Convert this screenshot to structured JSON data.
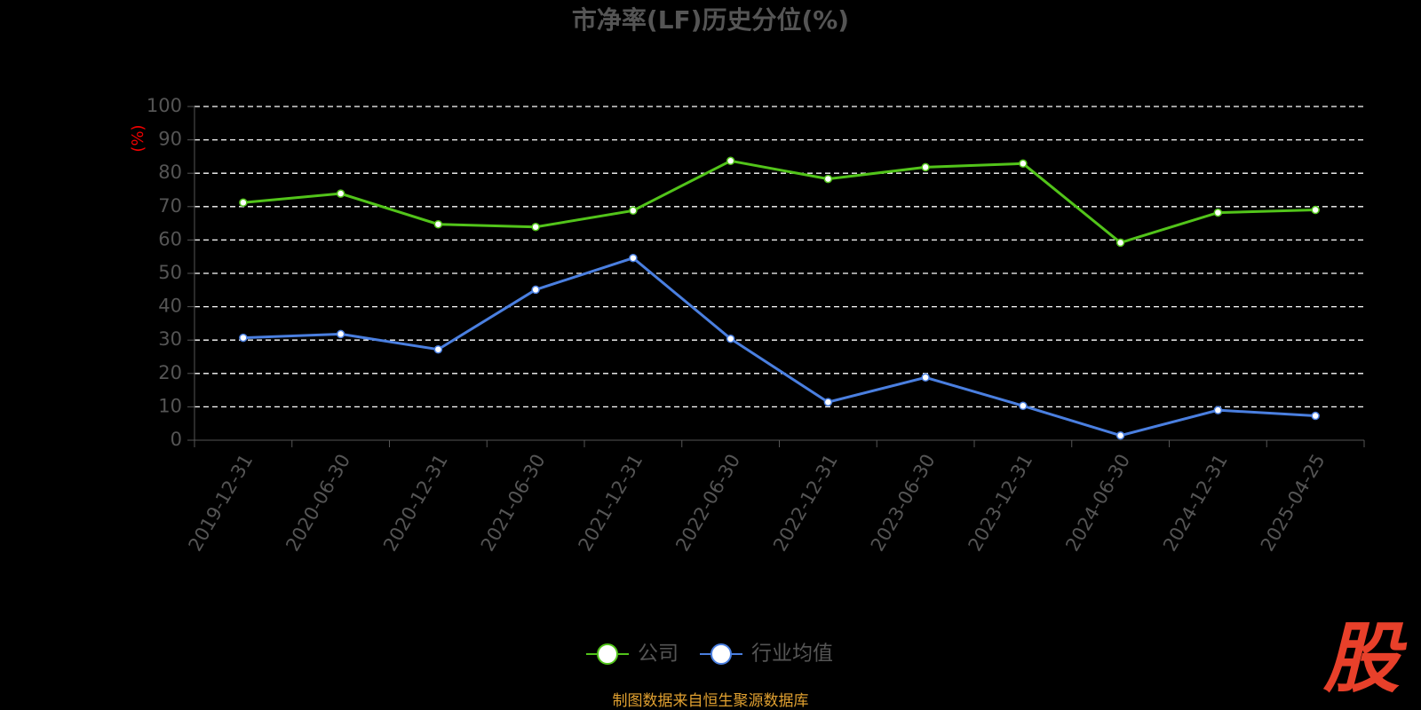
{
  "chart_data": {
    "type": "line",
    "title": "市净率(LF)历史分位(%)",
    "y_label": "(%)",
    "categories": [
      "2019-12-31",
      "2020-06-30",
      "2020-12-31",
      "2021-06-30",
      "2021-12-31",
      "2022-06-30",
      "2022-12-31",
      "2023-06-30",
      "2023-12-31",
      "2024-06-30",
      "2024-12-31",
      "2025-04-25"
    ],
    "series": [
      {
        "name": "公司",
        "color": "#52c41a",
        "values": [
          71.2,
          73.9,
          64.7,
          63.9,
          68.8,
          83.7,
          78.3,
          81.8,
          82.9,
          59.2,
          68.2,
          69.0
        ]
      },
      {
        "name": "行业均值",
        "color": "#4a7fe0",
        "values": [
          30.7,
          31.8,
          27.2,
          45.1,
          54.6,
          30.4,
          11.4,
          18.8,
          10.3,
          1.4,
          9.0,
          7.3
        ]
      }
    ],
    "ylim": [
      0,
      100
    ],
    "yticks": [
      0,
      10,
      20,
      30,
      40,
      50,
      60,
      70,
      80,
      90,
      100
    ],
    "grid": true,
    "legend": "bottom",
    "source": "制图数据来自恒生聚源数据库",
    "logo": "股"
  }
}
